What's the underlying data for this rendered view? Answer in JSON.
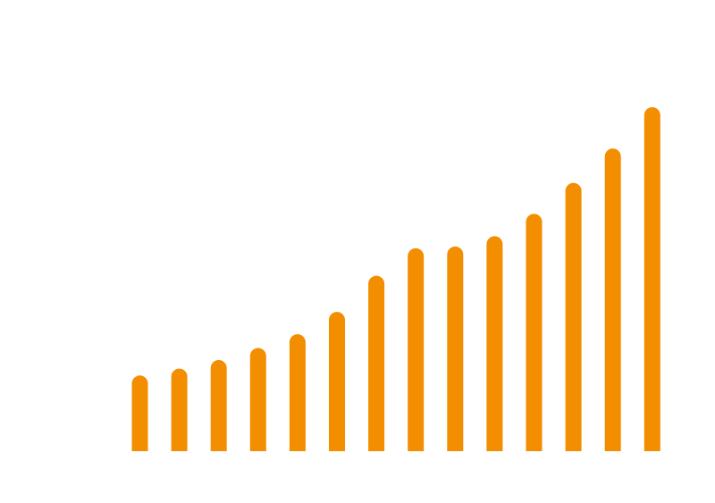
{
  "chart_data": {
    "type": "bar",
    "bar_style": "rounded-top",
    "colors": {
      "bar": "#F28E00",
      "background": "#FFFFFF"
    },
    "title": "",
    "xlabel": "",
    "ylabel": "",
    "grid": false,
    "axes_visible": false,
    "legend": "none",
    "ylim": [
      0,
      100
    ],
    "values": [
      22,
      24,
      26.5,
      30,
      34,
      40.5,
      51,
      59,
      59.5,
      62.5,
      69,
      78,
      88,
      100
    ]
  }
}
